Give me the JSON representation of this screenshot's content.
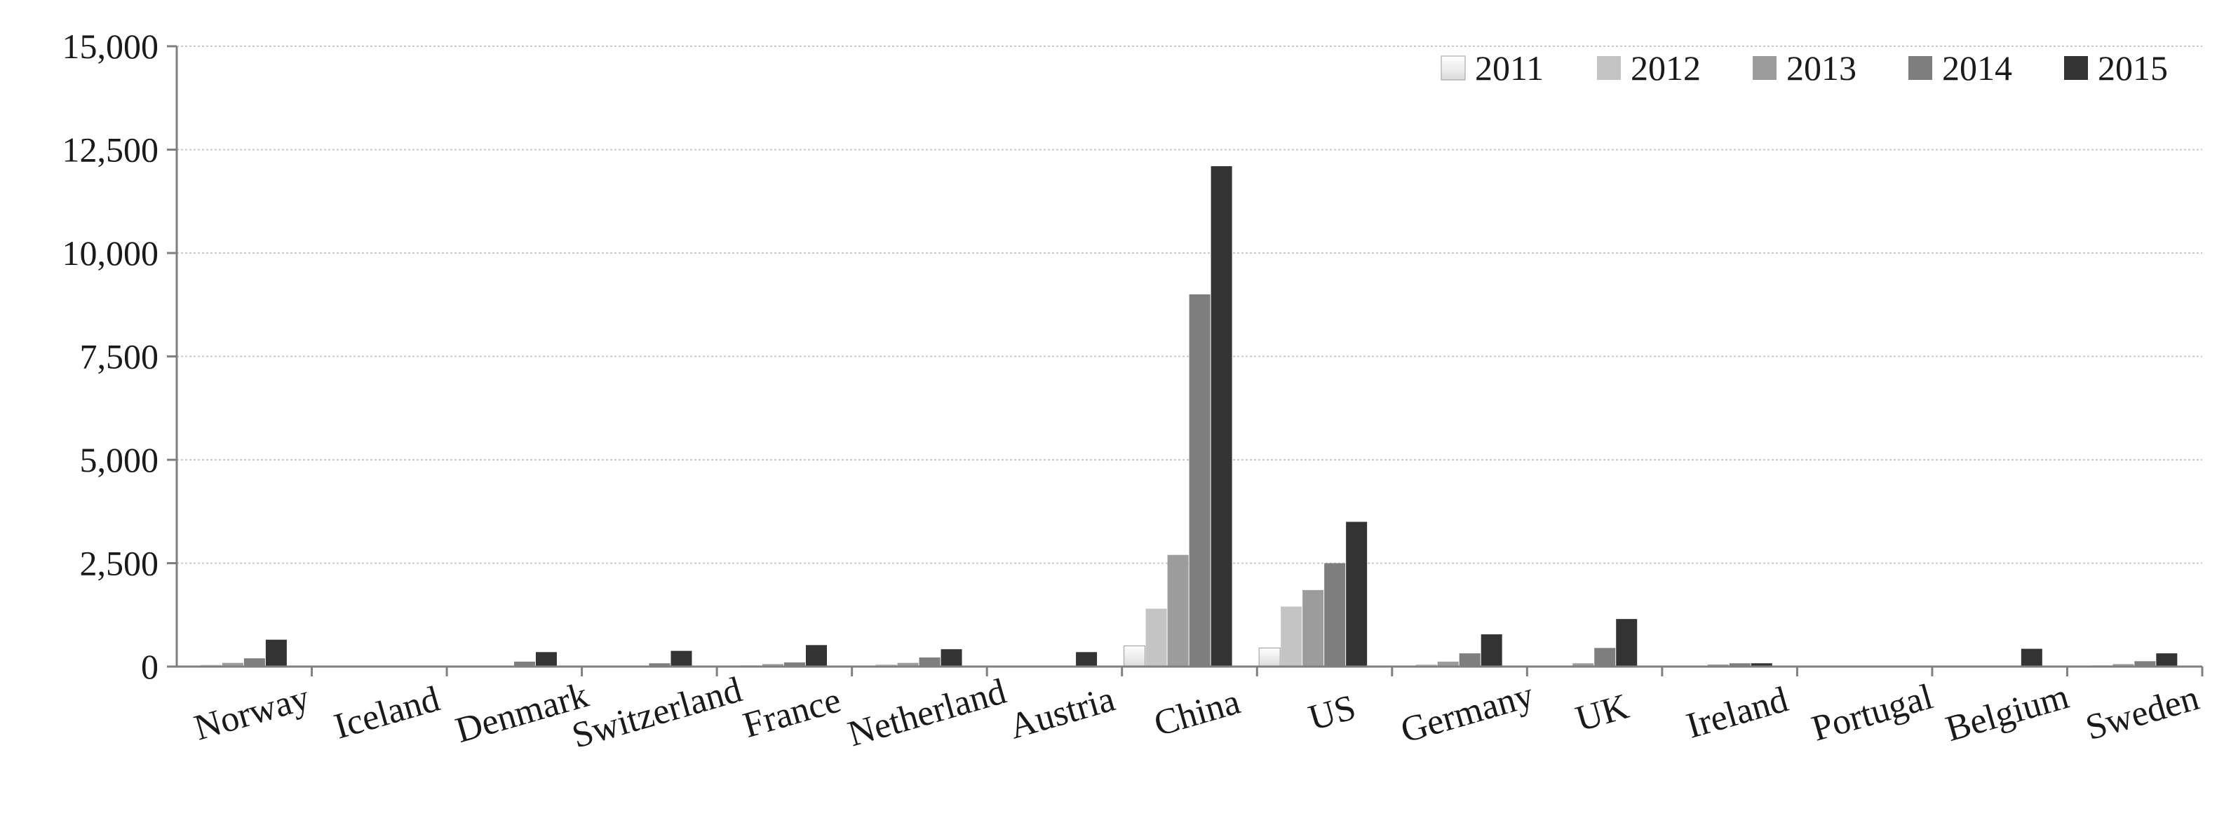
{
  "chart_data": {
    "type": "bar",
    "title": "",
    "xlabel": "",
    "ylabel": "",
    "categories": [
      "Norway",
      "Iceland",
      "Denmark",
      "Switzerland",
      "France",
      "Netherland",
      "Austria",
      "China",
      "US",
      "Germany",
      "UK",
      "Ireland",
      "Portugal",
      "Belgium",
      "Sweden"
    ],
    "series": [
      {
        "name": "2011",
        "color": "#f2f2f2",
        "values": [
          0,
          0,
          0,
          0,
          0,
          0,
          0,
          500,
          450,
          0,
          0,
          0,
          0,
          0,
          0
        ]
      },
      {
        "name": "2012",
        "color": "#c4c4c4",
        "values": [
          40,
          0,
          0,
          0,
          30,
          50,
          0,
          1400,
          1450,
          50,
          0,
          0,
          0,
          0,
          30
        ]
      },
      {
        "name": "2013",
        "color": "#9c9c9c",
        "values": [
          90,
          0,
          0,
          0,
          60,
          90,
          0,
          2700,
          1850,
          120,
          80,
          50,
          0,
          0,
          60
        ]
      },
      {
        "name": "2014",
        "color": "#7e7e7e",
        "values": [
          200,
          0,
          120,
          80,
          100,
          220,
          0,
          9000,
          2500,
          320,
          450,
          80,
          0,
          0,
          130
        ]
      },
      {
        "name": "2015",
        "color": "#333333",
        "values": [
          650,
          0,
          350,
          380,
          520,
          420,
          350,
          12100,
          3500,
          780,
          1150,
          80,
          0,
          430,
          320
        ]
      }
    ],
    "ylim": [
      0,
      15000
    ],
    "yticks": [
      0,
      2500,
      5000,
      7500,
      10000,
      12500,
      15000
    ],
    "ytick_labels": [
      "0",
      "2,500",
      "5,000",
      "7,500",
      "10,000",
      "12,500",
      "15,000"
    ],
    "grid": true,
    "legend_position": "top-right"
  }
}
